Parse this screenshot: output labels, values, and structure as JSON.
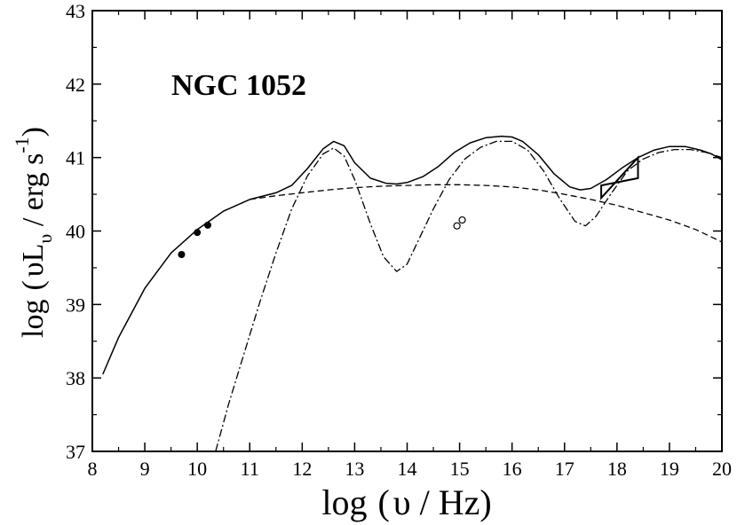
{
  "chart_data": {
    "type": "line",
    "annotation": "NGC 1052",
    "xlabel": {
      "prefix": "log",
      "open": "(",
      "symbol": "υ",
      "rest": " / Hz)"
    },
    "ylabel": {
      "prefix": "log",
      "open": "(",
      "symbol": "υL",
      "sub": "υ",
      "rest": " / erg s",
      "sup": "-1",
      "close": ")"
    },
    "xlim": [
      8,
      20
    ],
    "ylim": [
      37,
      43
    ],
    "xticks": [
      "8",
      "9",
      "10",
      "11",
      "12",
      "13",
      "14",
      "15",
      "16",
      "17",
      "18",
      "19",
      "20"
    ],
    "yticks": [
      "37",
      "38",
      "39",
      "40",
      "41",
      "42",
      "43"
    ],
    "grid": false,
    "series": [
      {
        "style": "solid",
        "x": [
          8.2,
          8.5,
          9.0,
          9.5,
          10.0,
          10.5,
          11.0,
          11.5,
          11.8,
          12.1,
          12.4,
          12.6,
          12.8,
          13.0,
          13.3,
          13.6,
          13.8,
          14.0,
          14.3,
          14.6,
          14.9,
          15.2,
          15.5,
          15.8,
          16.0,
          16.2,
          16.5,
          16.8,
          17.1,
          17.3,
          17.5,
          17.8,
          18.1,
          18.4,
          18.7,
          19.0,
          19.3,
          19.6,
          19.8,
          20.0
        ],
        "y": [
          38.05,
          38.55,
          39.22,
          39.7,
          40.02,
          40.27,
          40.43,
          40.52,
          40.62,
          40.85,
          41.12,
          41.22,
          41.16,
          40.93,
          40.72,
          40.65,
          40.64,
          40.66,
          40.74,
          40.88,
          41.07,
          41.2,
          41.27,
          41.29,
          41.28,
          41.22,
          41.04,
          40.78,
          40.6,
          40.56,
          40.58,
          40.7,
          40.86,
          41.0,
          41.1,
          41.15,
          41.15,
          41.1,
          41.05,
          40.97
        ]
      },
      {
        "style": "dashed",
        "x": [
          11.0,
          11.5,
          12.0,
          12.5,
          13.0,
          13.5,
          14.0,
          14.5,
          15.0,
          15.5,
          16.0,
          16.5,
          17.0,
          17.5,
          18.0,
          18.5,
          19.0,
          19.5,
          20.0
        ],
        "y": [
          40.43,
          40.48,
          40.52,
          40.56,
          40.59,
          40.61,
          40.62,
          40.63,
          40.63,
          40.62,
          40.6,
          40.56,
          40.5,
          40.43,
          40.35,
          40.25,
          40.15,
          40.02,
          39.85
        ]
      },
      {
        "style": "dashdot",
        "x": [
          10.35,
          10.6,
          10.9,
          11.2,
          11.5,
          11.8,
          12.1,
          12.4,
          12.6,
          12.8,
          13.0,
          13.3,
          13.55,
          13.8,
          14.0,
          14.2,
          14.5,
          14.8,
          15.1,
          15.4,
          15.7,
          16.0,
          16.3,
          16.6,
          16.9,
          17.2,
          17.4,
          17.6,
          17.9,
          18.2,
          18.5,
          18.8,
          19.1,
          19.4,
          19.7,
          20.0
        ],
        "y": [
          37.0,
          37.65,
          38.35,
          39.05,
          39.7,
          40.3,
          40.75,
          41.05,
          41.13,
          41.02,
          40.7,
          40.1,
          39.65,
          39.45,
          39.55,
          39.85,
          40.3,
          40.7,
          40.98,
          41.14,
          41.22,
          41.22,
          41.1,
          40.82,
          40.45,
          40.13,
          40.07,
          40.2,
          40.52,
          40.82,
          40.98,
          41.07,
          41.11,
          41.11,
          41.07,
          41.0
        ]
      }
    ],
    "filled_points": [
      {
        "x": 9.7,
        "y": 39.68
      },
      {
        "x": 10.0,
        "y": 39.98
      },
      {
        "x": 10.2,
        "y": 40.08
      }
    ],
    "open_points": [
      {
        "x": 14.95,
        "y": 40.07
      },
      {
        "x": 15.05,
        "y": 40.15
      }
    ],
    "bowtie": {
      "x": [
        17.7,
        18.4
      ],
      "y_low": [
        40.45,
        41.0
      ],
      "y_high": [
        40.62,
        40.72
      ]
    }
  }
}
